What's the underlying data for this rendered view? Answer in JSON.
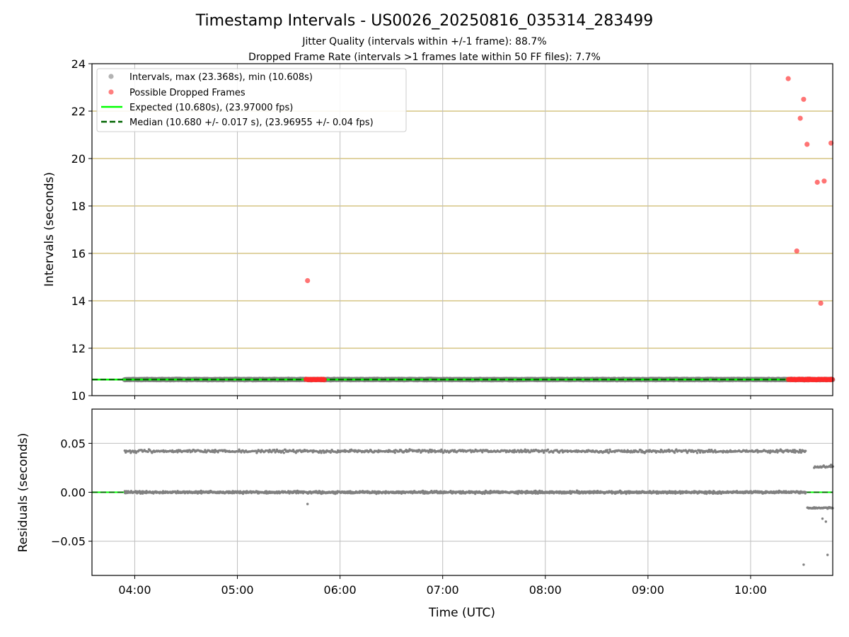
{
  "figure": {
    "title": "Timestamp Intervals - US0026_20250816_035314_283499",
    "subtitle1": "Jitter Quality (intervals within +/-1 frame): 88.7%",
    "subtitle2": "Dropped Frame Rate (intervals >1 frames late within 50 FF files): 7.7%"
  },
  "chart_data": [
    {
      "type": "scatter",
      "ylabel": "Intervals (seconds)",
      "xlabel": "",
      "xlim": [
        "03:35",
        "10:48"
      ],
      "ylim": [
        10,
        24
      ],
      "yticks": [
        "10",
        "12",
        "14",
        "16",
        "18",
        "20",
        "22",
        "24"
      ],
      "xticks": [
        "04:00",
        "05:00",
        "06:00",
        "07:00",
        "08:00",
        "09:00",
        "10:00"
      ],
      "grid": true,
      "legend_placement": "upper left",
      "legend": [
        "Intervals, max (23.368s), min (10.608s)",
        "Possible Dropped Frames",
        "Expected (10.680s), (23.97000 fps)",
        "Median (10.680 +/- 0.017 s), (23.96955 +/- 0.04 fps)"
      ],
      "colors": {
        "intervals": "#808080",
        "dropped": "#ff2a2a",
        "expected": "#00ff00",
        "median": "#006400",
        "hgrid": "#cdb96a",
        "vgrid": "#bfbfbf"
      },
      "series": [
        {
          "name": "Intervals, max (23.368s), min (10.608s)",
          "x_start": "03:54",
          "x_end": "10:48",
          "y": 10.68
        },
        {
          "name": "Possible Dropped Frames",
          "points": [
            [
              "05:41",
              14.85
            ],
            [
              "10:22",
              23.37
            ],
            [
              "10:27",
              16.1
            ],
            [
              "10:29",
              21.7
            ],
            [
              "10:31",
              22.5
            ],
            [
              "10:33",
              20.6
            ],
            [
              "10:39",
              19.0
            ],
            [
              "10:41",
              13.9
            ],
            [
              "10:43",
              19.05
            ],
            [
              "10:47",
              20.65
            ]
          ],
          "clusters": [
            {
              "x_start": "05:40",
              "x_end": "05:51",
              "y": 10.68
            },
            {
              "x_start": "10:22",
              "x_end": "10:48",
              "y": 10.68
            }
          ]
        },
        {
          "name": "Expected (10.680s), (23.97000 fps)",
          "y": 10.68
        },
        {
          "name": "Median (10.680 +/- 0.017 s), (23.96955 +/- 0.04 fps)",
          "y": 10.68
        }
      ]
    },
    {
      "type": "scatter",
      "ylabel": "Residuals (seconds)",
      "xlabel": "Time (UTC)",
      "xlim": [
        "03:35",
        "10:48"
      ],
      "ylim": [
        -0.085,
        0.085
      ],
      "yticks": [
        "0.05",
        "0.00",
        "−0.05"
      ],
      "ytick_values": [
        0.05,
        0,
        -0.05
      ],
      "xticks": [
        "04:00",
        "05:00",
        "06:00",
        "07:00",
        "08:00",
        "09:00",
        "10:00"
      ],
      "grid": true,
      "series": [
        {
          "name": "upper band",
          "x_start": "03:54",
          "x_end": "10:32",
          "y": 0.042
        },
        {
          "name": "zero band",
          "x_start": "03:54",
          "x_end": "10:32",
          "y": 0.0
        },
        {
          "name": "late upper band",
          "x_start": "10:37",
          "x_end": "10:48",
          "y": 0.026
        },
        {
          "name": "late lower band",
          "x_start": "10:33",
          "x_end": "10:48",
          "y": -0.016
        },
        {
          "name": "outliers",
          "points": [
            [
              "05:41",
              -0.012
            ],
            [
              "10:31",
              -0.074
            ],
            [
              "10:45",
              -0.064
            ],
            [
              "10:42",
              -0.027
            ],
            [
              "10:44",
              -0.03
            ],
            [
              "10:47",
              0.028
            ]
          ]
        }
      ],
      "reference_line": {
        "y": 0.0
      }
    }
  ]
}
